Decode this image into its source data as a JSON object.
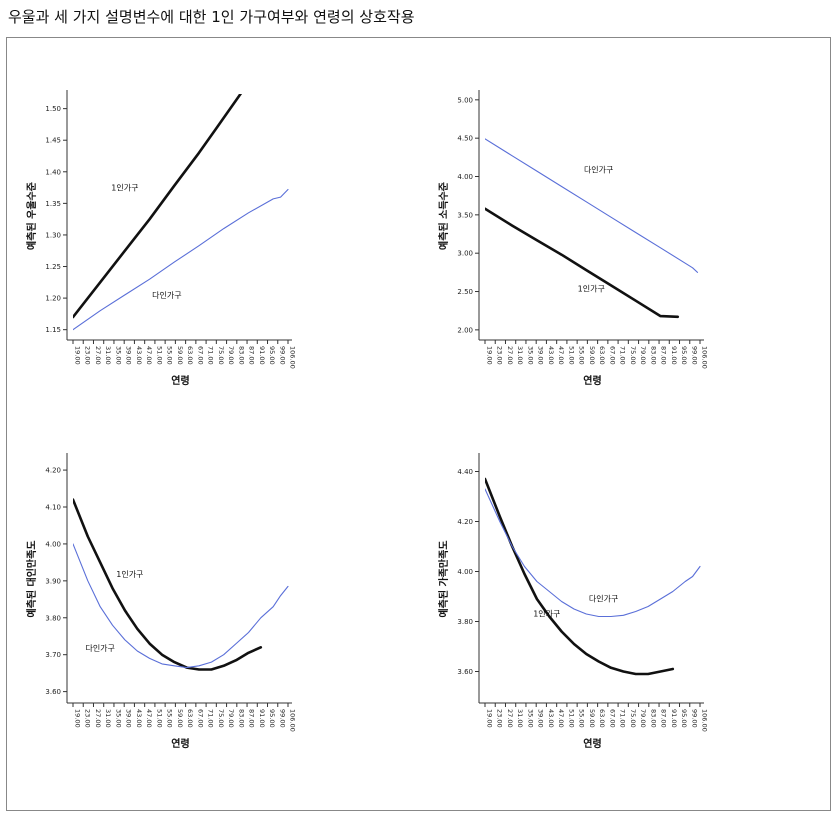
{
  "page": {
    "title": "우울과 세 가지 설명변수에 대한 1인 가구여부와 연령의 상호작용"
  },
  "chart_data": [
    {
      "type": "line",
      "xlabel": "연령",
      "ylabel": "예측된 우울수준",
      "ylim": [
        1.14,
        1.52
      ],
      "yticks": [
        "1.15",
        "1.20",
        "1.25",
        "1.30",
        "1.35",
        "1.40",
        "1.45",
        "1.50"
      ],
      "xticks": [
        "19.00",
        "23.00",
        "27.00",
        "31.00",
        "35.00",
        "39.00",
        "43.00",
        "47.00",
        "51.00",
        "55.00",
        "59.00",
        "63.00",
        "67.00",
        "71.00",
        "75.00",
        "79.00",
        "83.00",
        "87.00",
        "91.00",
        "95.00",
        "99.00",
        "106.00"
      ],
      "series": [
        {
          "name": "1인가구",
          "color": "#111111",
          "values": [
            [
              19,
              1.17
            ],
            [
              30,
              1.225
            ],
            [
              40,
              1.275
            ],
            [
              50,
              1.325
            ],
            [
              60,
              1.378
            ],
            [
              70,
              1.43
            ],
            [
              79,
              1.48
            ],
            [
              88,
              1.53
            ]
          ]
        },
        {
          "name": "다인가구",
          "color": "#5a6fd8",
          "values": [
            [
              19,
              1.15
            ],
            [
              30,
              1.18
            ],
            [
              40,
              1.205
            ],
            [
              50,
              1.23
            ],
            [
              60,
              1.257
            ],
            [
              70,
              1.283
            ],
            [
              80,
              1.31
            ],
            [
              90,
              1.335
            ],
            [
              100,
              1.357
            ],
            [
              103,
              1.36
            ],
            [
              106,
              1.372
            ]
          ]
        }
      ],
      "annotations": [
        {
          "text": "1인가구",
          "x": 40,
          "y": 1.37
        },
        {
          "text": "다인가구",
          "x": 57,
          "y": 1.2
        }
      ]
    },
    {
      "type": "line",
      "xlabel": "연령",
      "ylabel": "예측된 소득수준",
      "ylim": [
        1.92,
        5.05
      ],
      "yticks": [
        "2.00",
        "2.50",
        "3.00",
        "3.50",
        "4.00",
        "4.50",
        "5.00"
      ],
      "xticks": [
        "19.00",
        "23.00",
        "27.00",
        "31.00",
        "35.00",
        "39.00",
        "43.00",
        "47.00",
        "51.00",
        "55.00",
        "59.00",
        "63.00",
        "67.00",
        "71.00",
        "75.00",
        "79.00",
        "83.00",
        "87.00",
        "91.00",
        "95.00",
        "99.00",
        "106.00"
      ],
      "series": [
        {
          "name": "1인가구",
          "color": "#111111",
          "values": [
            [
              19,
              3.58
            ],
            [
              30,
              3.36
            ],
            [
              40,
              3.17
            ],
            [
              50,
              2.98
            ],
            [
              60,
              2.78
            ],
            [
              70,
              2.58
            ],
            [
              80,
              2.38
            ],
            [
              90,
              2.18
            ],
            [
              97,
              2.17
            ]
          ]
        },
        {
          "name": "다인가구",
          "color": "#5a6fd8",
          "values": [
            [
              19,
              4.49
            ],
            [
              30,
              4.27
            ],
            [
              40,
              4.07
            ],
            [
              50,
              3.87
            ],
            [
              60,
              3.67
            ],
            [
              70,
              3.47
            ],
            [
              80,
              3.27
            ],
            [
              90,
              3.07
            ],
            [
              100,
              2.87
            ],
            [
              103,
              2.81
            ],
            [
              105,
              2.75
            ]
          ]
        }
      ],
      "annotations": [
        {
          "text": "다인가구",
          "x": 65,
          "y": 4.05
        },
        {
          "text": "1인가구",
          "x": 62,
          "y": 2.5
        }
      ]
    },
    {
      "type": "line",
      "xlabel": "연령",
      "ylabel": "예측된 대인만족도",
      "ylim": [
        3.58,
        4.23
      ],
      "yticks": [
        "3.60",
        "3.70",
        "3.80",
        "3.90",
        "4.00",
        "4.10",
        "4.20"
      ],
      "xticks": [
        "19.00",
        "23.00",
        "27.00",
        "31.00",
        "35.00",
        "39.00",
        "43.00",
        "47.00",
        "51.00",
        "55.00",
        "59.00",
        "63.00",
        "67.00",
        "71.00",
        "75.00",
        "79.00",
        "83.00",
        "87.00",
        "91.00",
        "95.00",
        "99.00",
        "106.00"
      ],
      "series": [
        {
          "name": "1인가구",
          "color": "#111111",
          "values": [
            [
              19,
              4.12
            ],
            [
              25,
              4.02
            ],
            [
              30,
              3.95
            ],
            [
              35,
              3.88
            ],
            [
              40,
              3.82
            ],
            [
              45,
              3.77
            ],
            [
              50,
              3.73
            ],
            [
              55,
              3.7
            ],
            [
              60,
              3.68
            ],
            [
              65,
              3.665
            ],
            [
              70,
              3.66
            ],
            [
              75,
              3.66
            ],
            [
              80,
              3.67
            ],
            [
              85,
              3.685
            ],
            [
              90,
              3.705
            ],
            [
              95,
              3.72
            ]
          ]
        },
        {
          "name": "다인가구",
          "color": "#5a6fd8",
          "values": [
            [
              19,
              4.0
            ],
            [
              25,
              3.9
            ],
            [
              30,
              3.83
            ],
            [
              35,
              3.78
            ],
            [
              40,
              3.74
            ],
            [
              45,
              3.71
            ],
            [
              50,
              3.69
            ],
            [
              55,
              3.675
            ],
            [
              60,
              3.67
            ],
            [
              65,
              3.665
            ],
            [
              70,
              3.67
            ],
            [
              75,
              3.68
            ],
            [
              80,
              3.7
            ],
            [
              85,
              3.73
            ],
            [
              90,
              3.76
            ],
            [
              95,
              3.8
            ],
            [
              100,
              3.83
            ],
            [
              103,
              3.86
            ],
            [
              106,
              3.885
            ]
          ]
        }
      ],
      "annotations": [
        {
          "text": "1인가구",
          "x": 42,
          "y": 3.91
        },
        {
          "text": "다인가구",
          "x": 30,
          "y": 3.71
        }
      ]
    },
    {
      "type": "line",
      "xlabel": "연령",
      "ylabel": "예측된 가족만족도",
      "ylim": [
        3.49,
        4.45
      ],
      "yticks": [
        "3.60",
        "3.80",
        "4.00",
        "4.20",
        "4.40"
      ],
      "xticks": [
        "19.00",
        "23.00",
        "27.00",
        "31.00",
        "35.00",
        "39.00",
        "43.00",
        "47.00",
        "51.00",
        "55.00",
        "59.00",
        "63.00",
        "67.00",
        "71.00",
        "75.00",
        "79.00",
        "83.00",
        "87.00",
        "91.00",
        "95.00",
        "99.00",
        "106.00"
      ],
      "series": [
        {
          "name": "1인가구",
          "color": "#111111",
          "values": [
            [
              19,
              4.37
            ],
            [
              25,
              4.22
            ],
            [
              30,
              4.1
            ],
            [
              35,
              3.99
            ],
            [
              40,
              3.89
            ],
            [
              45,
              3.82
            ],
            [
              50,
              3.76
            ],
            [
              55,
              3.71
            ],
            [
              60,
              3.67
            ],
            [
              65,
              3.64
            ],
            [
              70,
              3.615
            ],
            [
              75,
              3.6
            ],
            [
              80,
              3.59
            ],
            [
              85,
              3.59
            ],
            [
              90,
              3.6
            ],
            [
              95,
              3.61
            ]
          ]
        },
        {
          "name": "다인가구",
          "color": "#5a6fd8",
          "values": [
            [
              19,
              4.33
            ],
            [
              25,
              4.2
            ],
            [
              30,
              4.1
            ],
            [
              35,
              4.02
            ],
            [
              40,
              3.96
            ],
            [
              45,
              3.92
            ],
            [
              50,
              3.88
            ],
            [
              55,
              3.85
            ],
            [
              60,
              3.83
            ],
            [
              65,
              3.82
            ],
            [
              70,
              3.82
            ],
            [
              75,
              3.825
            ],
            [
              80,
              3.84
            ],
            [
              85,
              3.86
            ],
            [
              90,
              3.89
            ],
            [
              95,
              3.92
            ],
            [
              100,
              3.96
            ],
            [
              103,
              3.98
            ],
            [
              106,
              4.02
            ]
          ]
        }
      ],
      "annotations": [
        {
          "text": "다인가구",
          "x": 67,
          "y": 3.88
        },
        {
          "text": "1인가구",
          "x": 44,
          "y": 3.82
        }
      ]
    }
  ]
}
